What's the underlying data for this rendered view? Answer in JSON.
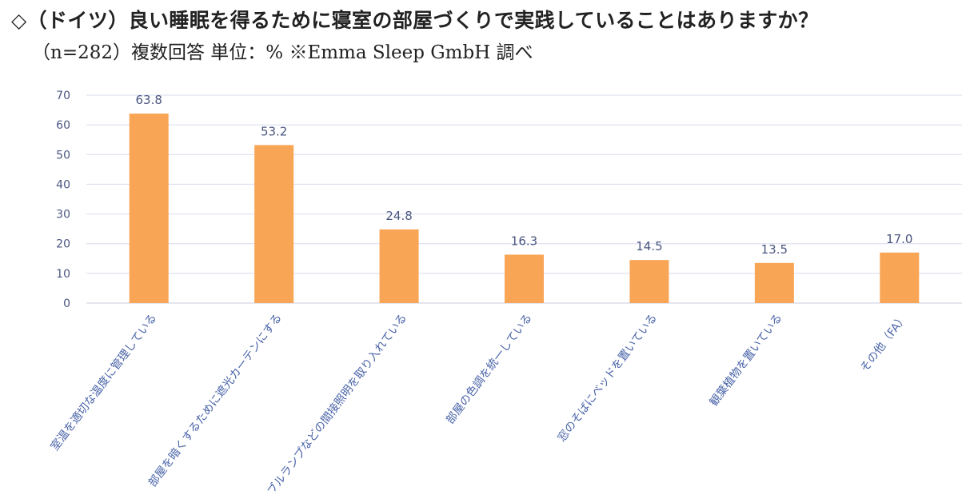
{
  "title": "◇（ドイツ）良い睡眠を得るために寝室の部屋づくりで実践していることはありますか？",
  "subtitle": "（n=282）複数回答 単位：% ※Emma Sleep GmbH 調べ",
  "colors": {
    "bar": "#f8a556",
    "text": "#4a5680",
    "category_text": "#4a64a8",
    "grid": "#d9dcef"
  },
  "chart_data": {
    "type": "bar",
    "categories": [
      "室温を適切な温度に管理している",
      "部屋を暗くするために遮光カーテンにする",
      "テーブルランプなどの間接照明を取り入れている",
      "部屋の色調を統一している",
      "窓のそばにベッドを置いている",
      "観葉植物を置いている",
      "その他（FA）"
    ],
    "values": [
      63.8,
      53.2,
      24.8,
      16.3,
      14.5,
      13.5,
      17.0
    ],
    "value_labels": [
      "63.8",
      "53.2",
      "24.8",
      "16.3",
      "14.5",
      "13.5",
      "17.0"
    ],
    "yticks": [
      "0",
      "10",
      "20",
      "30",
      "40",
      "50",
      "60",
      "70"
    ],
    "ylim": [
      0,
      70
    ],
    "grid": true,
    "legend": "none"
  }
}
